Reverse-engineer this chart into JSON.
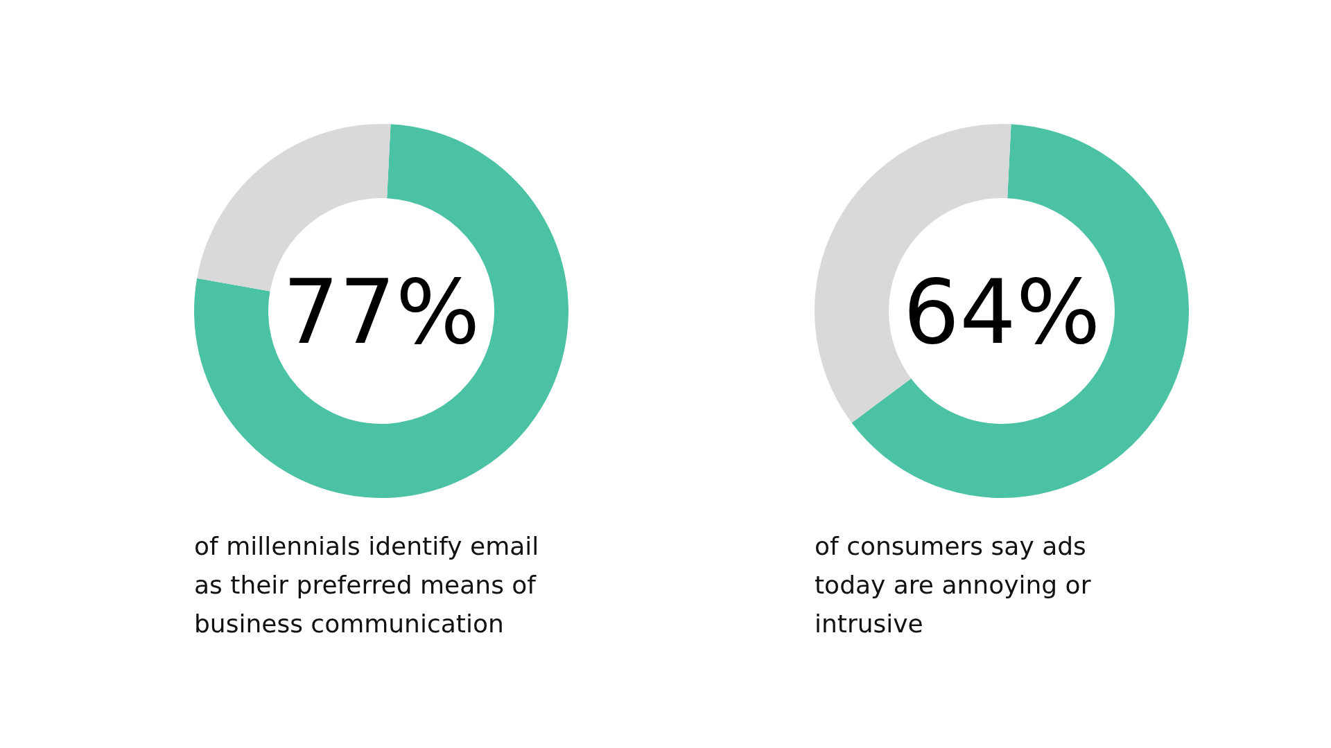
{
  "chart_data": [
    {
      "type": "donut",
      "categories": [
        null,
        null
      ],
      "values": [
        77,
        23
      ],
      "colors": [
        "#4cc2a5",
        "#d9d9d9"
      ],
      "value_labels": [
        "77%",
        null
      ],
      "annotations": [
        "of millennials identify email as their preferred means of business communication"
      ]
    },
    {
      "type": "donut",
      "categories": [
        null,
        null
      ],
      "values": [
        64,
        36
      ],
      "colors": [
        "#4cc2a5",
        "#d9d9d9"
      ],
      "value_labels": [
        "64%",
        null
      ],
      "annotations": [
        "of consumers say ads today are annoying or intrusive"
      ]
    }
  ]
}
